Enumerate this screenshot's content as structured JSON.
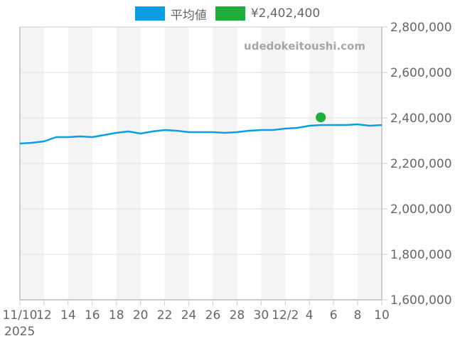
{
  "legend": {
    "items": [
      {
        "label": "平均値",
        "color": "#0b9ee3"
      },
      {
        "label": "¥2,402,400",
        "color": "#1fae3b"
      }
    ]
  },
  "watermark": "udedokeitoushi.com",
  "x_axis": {
    "ticks": [
      "11/10",
      "12",
      "14",
      "16",
      "18",
      "20",
      "22",
      "24",
      "26",
      "28",
      "30",
      "12/2",
      "4",
      "6",
      "8",
      "10"
    ],
    "year_label": "2025"
  },
  "y_axis": {
    "ticks": [
      "2,800,000",
      "2,600,000",
      "2,400,000",
      "2,200,000",
      "2,000,000",
      "1,800,000",
      "1,600,000"
    ]
  },
  "chart_data": {
    "type": "line",
    "title": "",
    "xlabel": "",
    "ylabel": "",
    "ylim": [
      1600000,
      2800000
    ],
    "xlim": [
      "2025-11-10",
      "2025-12-10"
    ],
    "grid": {
      "horizontal": true,
      "alternating_vertical_bands": true
    },
    "legend_position": "top",
    "x": [
      "11/10",
      "11/11",
      "11/12",
      "11/13",
      "11/14",
      "11/15",
      "11/16",
      "11/17",
      "11/18",
      "11/19",
      "11/20",
      "11/21",
      "11/22",
      "11/23",
      "11/24",
      "11/25",
      "11/26",
      "11/27",
      "11/28",
      "11/29",
      "11/30",
      "12/1",
      "12/2",
      "12/3",
      "12/4",
      "12/5",
      "12/6",
      "12/7",
      "12/8",
      "12/9",
      "12/10"
    ],
    "series": [
      {
        "name": "平均値",
        "color": "#0b9ee3",
        "values": [
          2287500,
          2290600,
          2296900,
          2315600,
          2315600,
          2318800,
          2315600,
          2325000,
          2334400,
          2340600,
          2331300,
          2340600,
          2346900,
          2343800,
          2337500,
          2337500,
          2337500,
          2334400,
          2337500,
          2343800,
          2346900,
          2346900,
          2353100,
          2356300,
          2365600,
          2368800,
          2368800,
          2368800,
          2371900,
          2365600,
          2368800
        ]
      },
      {
        "name": "¥2,402,400",
        "color": "#1fae3b",
        "type": "scatter",
        "points": [
          {
            "x": "12/5",
            "y": 2402400
          }
        ]
      }
    ]
  }
}
